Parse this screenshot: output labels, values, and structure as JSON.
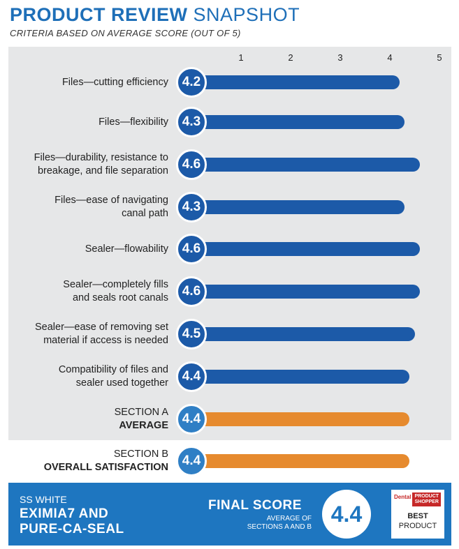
{
  "header": {
    "title_bold": "PRODUCT REVIEW",
    "title_light": "SNAPSHOT",
    "subtitle": "CRITERIA BASED ON AVERAGE SCORE (OUT OF 5)"
  },
  "colors": {
    "blue": "#1c5aa8",
    "orange": "#e68a2e",
    "footer": "#1e76c0",
    "gray": "#e6e7e8"
  },
  "chart_data": {
    "type": "bar",
    "orientation": "horizontal",
    "xlim": [
      0,
      5
    ],
    "ticks": [
      "1",
      "2",
      "3",
      "4",
      "5"
    ],
    "tick_values": [
      1,
      2,
      3,
      4,
      5
    ],
    "categories": [
      "Files—cutting efficiency",
      "Files—flexibility",
      "Files—durability, resistance to breakage, and file separation",
      "Files—ease of navigating canal path",
      "Sealer—flowability",
      "Sealer—completely fills and seals root canals",
      "Sealer—ease of removing set material if access is needed",
      "Compatibility of files and sealer used together",
      "SECTION A AVERAGE",
      "SECTION B OVERALL SATISFACTION"
    ],
    "values": [
      4.2,
      4.3,
      4.6,
      4.3,
      4.6,
      4.6,
      4.5,
      4.4,
      4.4,
      4.4
    ],
    "value_labels": [
      "4.2",
      "4.3",
      "4.6",
      "4.3",
      "4.6",
      "4.6",
      "4.5",
      "4.4",
      "4.4",
      "4.4"
    ],
    "bar_colors": [
      "blue",
      "blue",
      "blue",
      "blue",
      "blue",
      "blue",
      "blue",
      "blue",
      "orange",
      "orange"
    ],
    "rows": [
      {
        "lines": [
          {
            "text": "Files—cutting efficiency"
          }
        ]
      },
      {
        "lines": [
          {
            "text": "Files—flexibility"
          }
        ]
      },
      {
        "lines": [
          {
            "text": "Files—durability, resistance to"
          },
          {
            "text": "breakage, and file separation"
          }
        ]
      },
      {
        "lines": [
          {
            "text": "Files—ease of navigating"
          },
          {
            "text": "canal path"
          }
        ]
      },
      {
        "lines": [
          {
            "text": "Sealer—flowability"
          }
        ]
      },
      {
        "lines": [
          {
            "text": "Sealer—completely fills"
          },
          {
            "text": "and seals root canals"
          }
        ]
      },
      {
        "lines": [
          {
            "text": "Sealer—ease of removing set"
          },
          {
            "text": "material if access is needed"
          }
        ]
      },
      {
        "lines": [
          {
            "text": "Compatibility of files and"
          },
          {
            "text": "sealer used together"
          }
        ]
      },
      {
        "lines": [
          {
            "text": "SECTION A"
          },
          {
            "text": "AVERAGE",
            "bold": true
          }
        ]
      },
      {
        "lines": [
          {
            "text": "SECTION B"
          },
          {
            "text": "OVERALL SATISFACTION",
            "bold": true
          }
        ]
      }
    ]
  },
  "footer": {
    "brand": "SS WHITE",
    "product_line1": "EXIMIA7 AND",
    "product_line2": "PURE-CA-SEAL",
    "final_score_label": "FINAL SCORE",
    "final_score_sub1": "AVERAGE OF",
    "final_score_sub2": "SECTIONS A AND B",
    "final_score": "4.4",
    "logo_dental": "Dental",
    "logo_product_shopper_1": "PRODUCT",
    "logo_product_shopper_2": "SHOPPER",
    "logo_best": "BEST",
    "logo_product": "PRODUCT"
  }
}
